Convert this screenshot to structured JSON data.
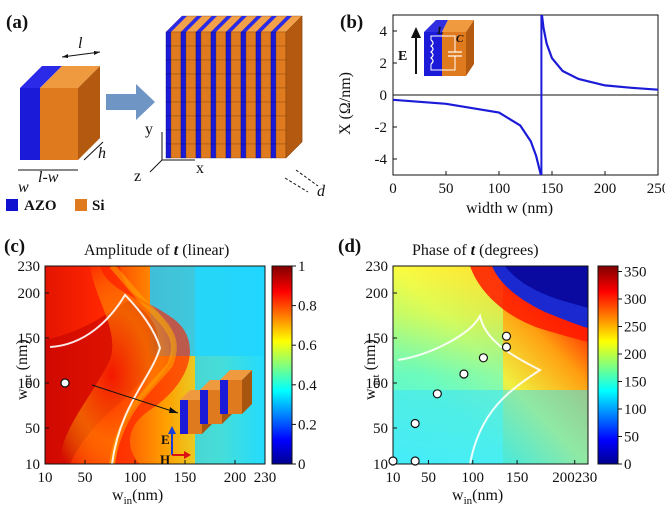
{
  "figure": {
    "panel_labels": [
      "(a)",
      "(b)",
      "(c)",
      "(d)"
    ]
  },
  "panel_a": {
    "dim_l": "l",
    "dim_w": "w",
    "dim_lw": "l-w",
    "dim_h": "h",
    "dim_d": "d",
    "axis_x": "x",
    "axis_y": "y",
    "axis_z": "z",
    "legend": [
      {
        "label": "AZO",
        "color": "#1010d0"
      },
      {
        "label": "Si",
        "color": "#e07a1e"
      }
    ]
  },
  "panel_c": {
    "title": "Amplitude of",
    "title_var": "t",
    "title_suffix": "(linear)",
    "xlabel": "w",
    "xlabel_sub": "in",
    "xlabel_unit": "(nm)",
    "ylabel": "w",
    "ylabel_sub": "out",
    "ylabel_unit": "(nm)",
    "xticks": [
      "10",
      "50",
      "100",
      "150",
      "200",
      "230"
    ],
    "yticks": [
      "10",
      "50",
      "100",
      "150",
      "200",
      "230"
    ],
    "colorbar_ticks": [
      "0",
      "0.2",
      "0.4",
      "0.6",
      "0.8",
      "1"
    ],
    "inset_E": "E",
    "inset_H": "H"
  },
  "panel_d": {
    "title": "Phase of",
    "title_var": "t",
    "title_suffix": "(degrees)",
    "xlabel": "w",
    "xlabel_sub": "in",
    "xlabel_unit": "(nm)",
    "ylabel": "w",
    "ylabel_sub": "out",
    "ylabel_unit": "(nm)",
    "xticks": [
      "10",
      "50",
      "100",
      "150",
      "200230"
    ],
    "yticks": [
      "10",
      "50",
      "100",
      "150",
      "200",
      "230"
    ],
    "colorbar_ticks": [
      "0",
      "50",
      "100",
      "150",
      "200",
      "250",
      "300",
      "350"
    ]
  },
  "chart_data": [
    {
      "type": "line",
      "panel": "b",
      "xlabel": "width w (nm)",
      "ylabel": "X (Ω/nm)",
      "xlim": [
        0,
        250
      ],
      "ylim": [
        -5,
        5
      ],
      "xticks": [
        0,
        50,
        100,
        150,
        200,
        250
      ],
      "yticks": [
        -4,
        -2,
        0,
        2,
        4
      ],
      "inset_labels": [
        "E",
        "L",
        "C"
      ],
      "resonance_x": 140,
      "series": [
        {
          "values_x": [
            0,
            50,
            100,
            120,
            130,
            135,
            138,
            139.5
          ],
          "values_y": [
            -0.3,
            -0.55,
            -1.1,
            -1.9,
            -2.9,
            -3.8,
            -4.6,
            -5
          ]
        },
        {
          "values_x": [
            140.5,
            142,
            145,
            150,
            160,
            175,
            200,
            225,
            250
          ],
          "values_y": [
            5,
            4.2,
            3.2,
            2.3,
            1.5,
            1.0,
            0.6,
            0.45,
            0.33
          ]
        }
      ]
    },
    {
      "type": "heatmap",
      "panel": "c",
      "xlim": [
        10,
        230
      ],
      "ylim": [
        10,
        230
      ],
      "zlim": [
        0,
        1
      ],
      "marked_point": {
        "x": 30,
        "y": 100
      }
    },
    {
      "type": "heatmap",
      "panel": "d",
      "xlim": [
        10,
        230
      ],
      "ylim": [
        10,
        230
      ],
      "zlim": [
        0,
        360
      ],
      "marked_points": [
        {
          "x": 10,
          "y": 10
        },
        {
          "x": 35,
          "y": 10
        },
        {
          "x": 35,
          "y": 55
        },
        {
          "x": 60,
          "y": 88
        },
        {
          "x": 90,
          "y": 110
        },
        {
          "x": 112,
          "y": 128
        },
        {
          "x": 138,
          "y": 140
        },
        {
          "x": 138,
          "y": 152
        }
      ]
    }
  ]
}
